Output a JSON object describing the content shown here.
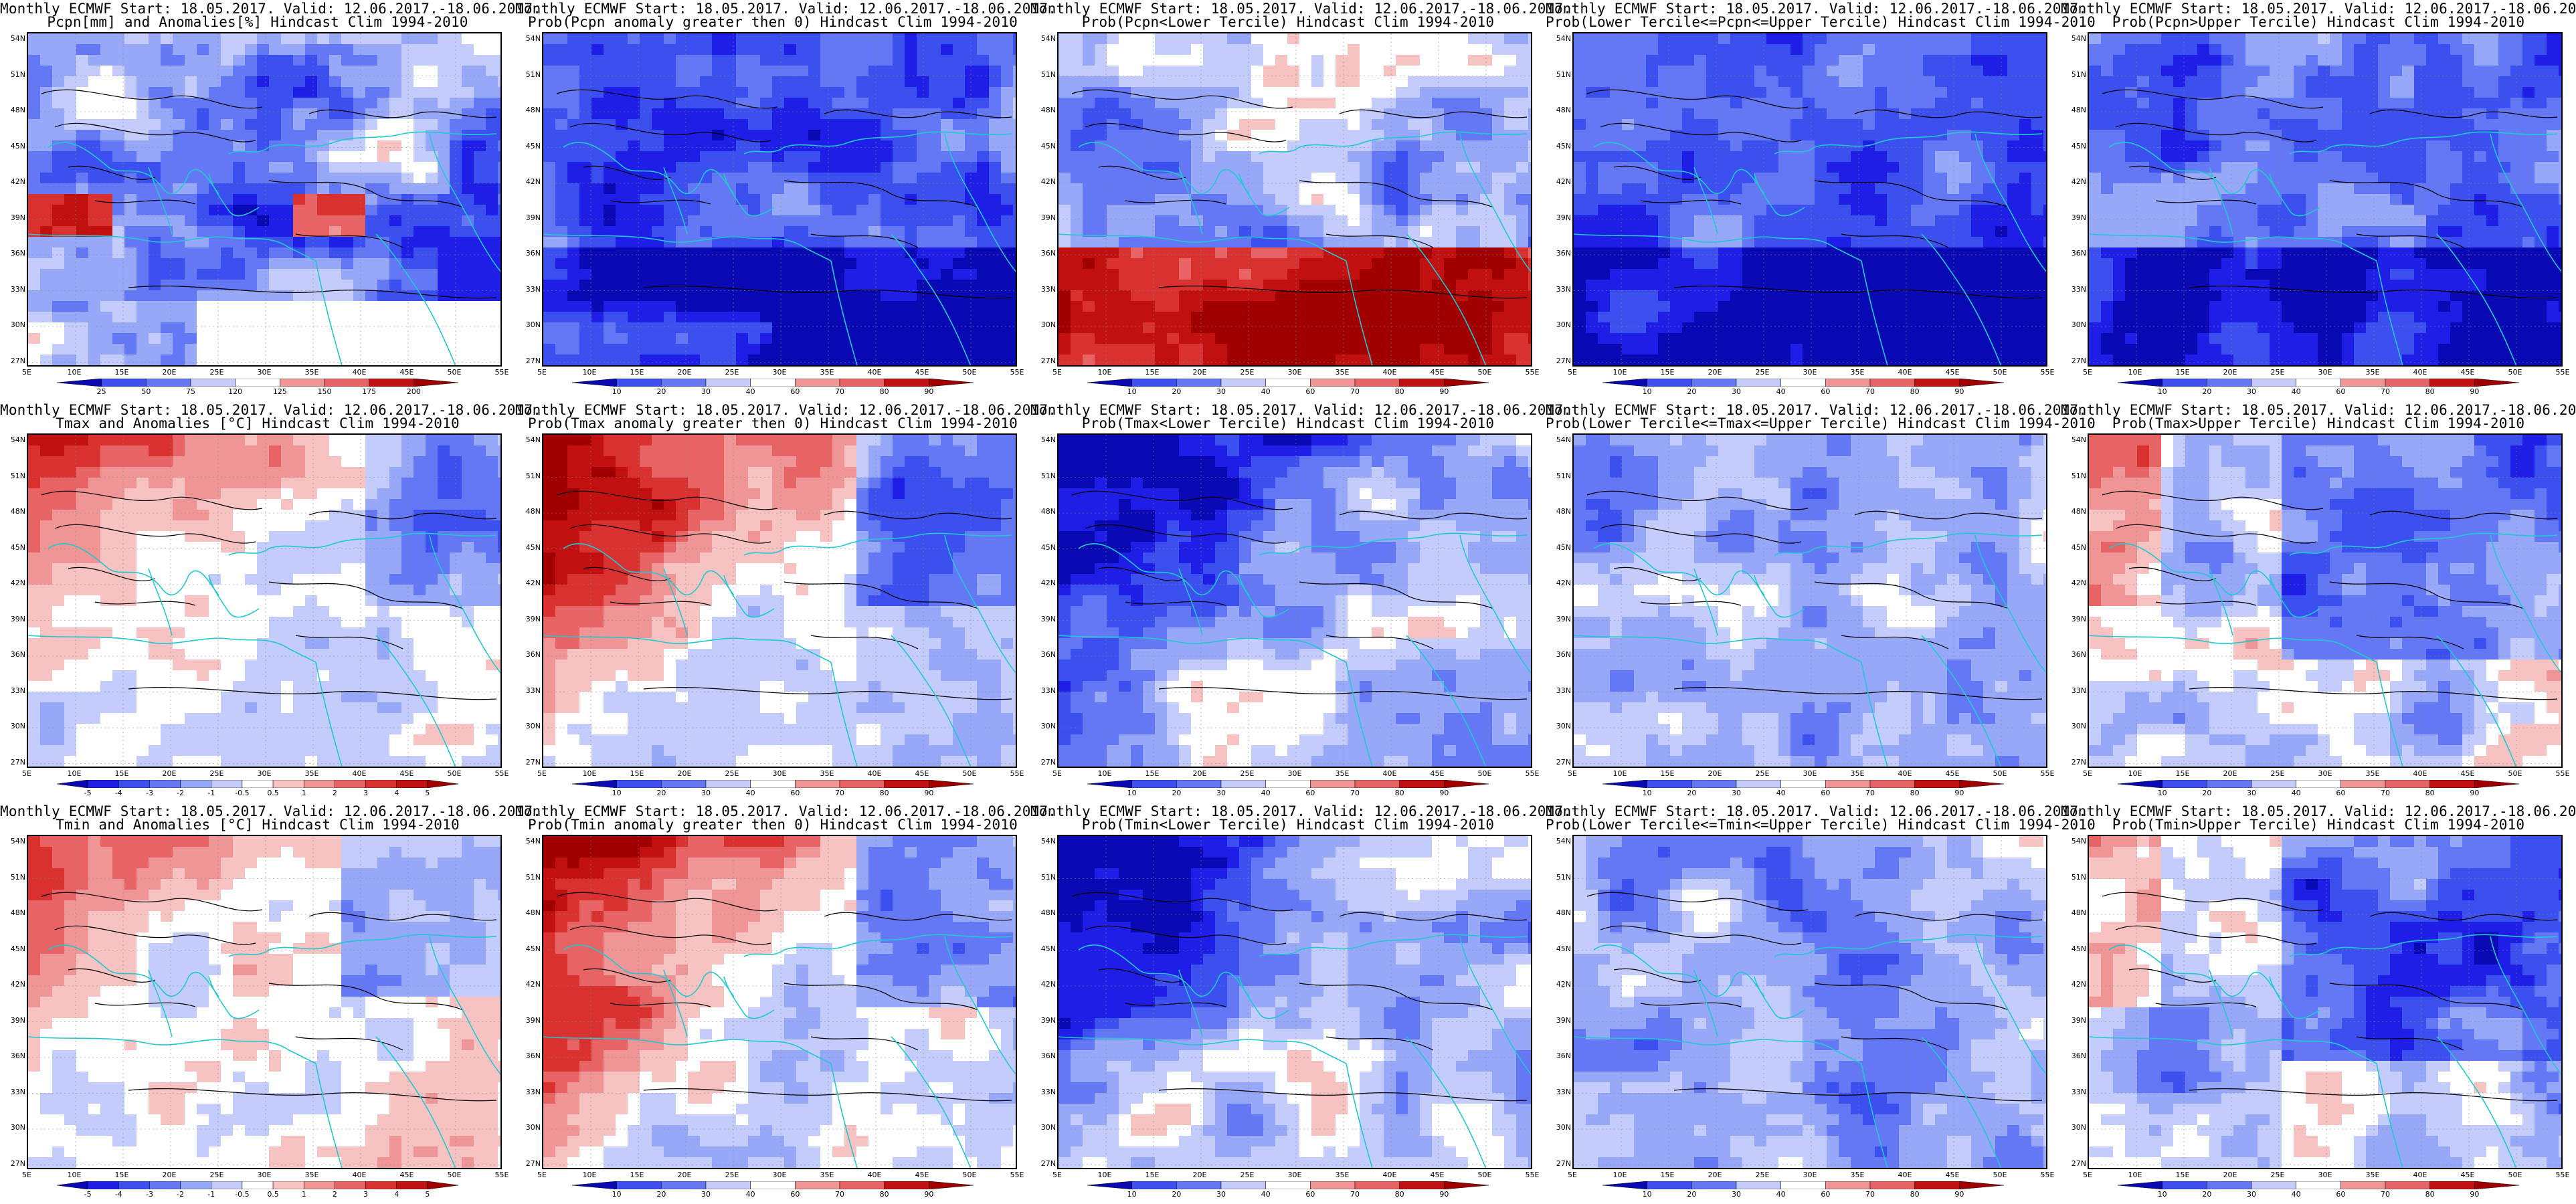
{
  "header": "Monthly ECMWF Start: 18.05.2017. Valid: 12.06.2017.-18.06.2017.",
  "lat_labels": [
    "54N",
    "51N",
    "48N",
    "45N",
    "42N",
    "39N",
    "36N",
    "33N",
    "30N",
    "27N"
  ],
  "lon_labels": [
    "5E",
    "10E",
    "15E",
    "20E",
    "25E",
    "30E",
    "35E",
    "40E",
    "45E",
    "50E",
    "55E"
  ],
  "scales": {
    "anom_pcp": [
      "25",
      "50",
      "75",
      "120",
      "125",
      "150",
      "175",
      "200"
    ],
    "prob": [
      "10",
      "20",
      "30",
      "40",
      "60",
      "70",
      "80",
      "90"
    ],
    "anom_temp": [
      "-5",
      "-4",
      "-3",
      "-2",
      "-1",
      "-0.5",
      "0.5",
      "1",
      "2",
      "3",
      "4",
      "5"
    ]
  },
  "colors": {
    "blues": [
      "#0a0ab4",
      "#1e1ee6",
      "#3c50f0",
      "#6478f5",
      "#98a8f8",
      "#c4ccfb"
    ],
    "reds": [
      "#f7c2c2",
      "#f09595",
      "#e86464",
      "#d93030",
      "#c01010",
      "#a00000"
    ],
    "neutral": "#ffffff",
    "coast": "#20c8d0",
    "contour": "#000000"
  },
  "panels": [
    {
      "id": "pcpn-anom",
      "subtitle": "Pcpn[mm] and Anomalies[%] Hindcast Clim 1994-2010",
      "scale": "anom_pcp",
      "pattern": "pcp_anom"
    },
    {
      "id": "pcpn-prob-gt0",
      "subtitle": "Prob(Pcpn anomaly greater then 0) Hindcast Clim 1994-2010",
      "scale": "prob",
      "pattern": "pcp_gt0"
    },
    {
      "id": "pcpn-lower",
      "subtitle": "Prob(Pcpn<Lower Tercile) Hindcast Clim 1994-2010",
      "scale": "prob",
      "pattern": "pcp_low"
    },
    {
      "id": "pcpn-middle",
      "subtitle": "Prob(Lower Tercile<=Pcpn<=Upper Tercile) Hindcast Clim 1994-2010",
      "scale": "prob",
      "pattern": "pcp_mid"
    },
    {
      "id": "pcpn-upper",
      "subtitle": "Prob(Pcpn>Upper Tercile) Hindcast Clim 1994-2010",
      "scale": "prob",
      "pattern": "pcp_up"
    },
    {
      "id": "tmax-anom",
      "subtitle": "Tmax and Anomalies [°C] Hindcast Clim 1994-2010",
      "scale": "anom_temp",
      "pattern": "warm_nw"
    },
    {
      "id": "tmax-prob-gt0",
      "subtitle": "Prob(Tmax anomaly greater then 0) Hindcast Clim 1994-2010",
      "scale": "prob",
      "pattern": "warm_nw_strong"
    },
    {
      "id": "tmax-lower",
      "subtitle": "Prob(Tmax<Lower Tercile) Hindcast Clim 1994-2010",
      "scale": "prob",
      "pattern": "cold_nw"
    },
    {
      "id": "tmax-middle",
      "subtitle": "Prob(Lower Tercile<=Tmax<=Upper Tercile) Hindcast Clim 1994-2010",
      "scale": "prob",
      "pattern": "mid_light"
    },
    {
      "id": "tmax-upper",
      "subtitle": "Prob(Tmax>Upper Tercile) Hindcast Clim 1994-2010",
      "scale": "prob",
      "pattern": "up_east_blue"
    },
    {
      "id": "tmin-anom",
      "subtitle": "Tmin and Anomalies [°C] Hindcast Clim 1994-2010",
      "scale": "anom_temp",
      "pattern": "warm_nw_light"
    },
    {
      "id": "tmin-prob-gt0",
      "subtitle": "Prob(Tmin anomaly greater then 0) Hindcast Clim 1994-2010",
      "scale": "prob",
      "pattern": "warm_nw_strong"
    },
    {
      "id": "tmin-lower",
      "subtitle": "Prob(Tmin<Lower Tercile) Hindcast Clim 1994-2010",
      "scale": "prob",
      "pattern": "cold_nw"
    },
    {
      "id": "tmin-middle",
      "subtitle": "Prob(Lower Tercile<=Tmin<=Upper Tercile) Hindcast Clim 1994-2010",
      "scale": "prob",
      "pattern": "mid_light"
    },
    {
      "id": "tmin-upper",
      "subtitle": "Prob(Tmin>Upper Tercile) Hindcast Clim 1994-2010",
      "scale": "prob",
      "pattern": "up_east_blue"
    }
  ]
}
